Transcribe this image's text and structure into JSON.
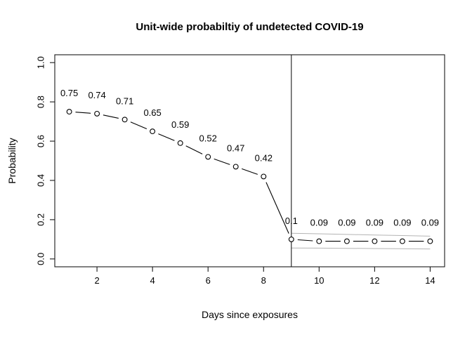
{
  "chart_data": {
    "type": "line",
    "title": "Unit-wide probabiltiy of undetected COVID-19",
    "xlabel": "Days since exposures",
    "ylabel": "Probability",
    "x": [
      1,
      2,
      3,
      4,
      5,
      6,
      7,
      8,
      9,
      10,
      11,
      12,
      13,
      14
    ],
    "values": [
      0.75,
      0.74,
      0.71,
      0.65,
      0.59,
      0.52,
      0.47,
      0.42,
      0.1,
      0.09,
      0.09,
      0.09,
      0.09,
      0.09
    ],
    "point_labels": [
      "0.75",
      "0.74",
      "0.71",
      "0.65",
      "0.59",
      "0.52",
      "0.47",
      "0.42",
      "0.1",
      "0.09",
      "0.09",
      "0.09",
      "0.09",
      "0.09"
    ],
    "x_ticks": {
      "values": [
        2,
        4,
        6,
        8,
        10,
        12,
        14
      ],
      "labels": [
        "2",
        "4",
        "6",
        "8",
        "10",
        "12",
        "14"
      ]
    },
    "y_ticks": {
      "values": [
        0.0,
        0.2,
        0.4,
        0.6,
        0.8,
        1.0
      ],
      "labels": [
        "0.0",
        "0.2",
        "0.4",
        "0.6",
        "0.8",
        "1.0"
      ]
    },
    "xlim": [
      0.48,
      14.52
    ],
    "ylim": [
      -0.04,
      1.04
    ],
    "reference_vline_x": 9,
    "ci_band": {
      "x": [
        9,
        10,
        11,
        12,
        13,
        14
      ],
      "upper": [
        0.131,
        0.128,
        0.125,
        0.122,
        0.119,
        0.116
      ],
      "lower": [
        0.056,
        0.055,
        0.054,
        0.053,
        0.052,
        0.051
      ]
    },
    "colors": {
      "line": "#000000",
      "point_stroke": "#000000",
      "point_fill": "#ffffff",
      "band": "#b4b4b4",
      "vline": "#1a1a1a",
      "axis": "#1a1a1a",
      "text": "#000000",
      "background": "#ffffff"
    },
    "style": {
      "point_style": "open-circle",
      "line_type": "points-with-segments",
      "grid": false,
      "legend": "none"
    }
  }
}
